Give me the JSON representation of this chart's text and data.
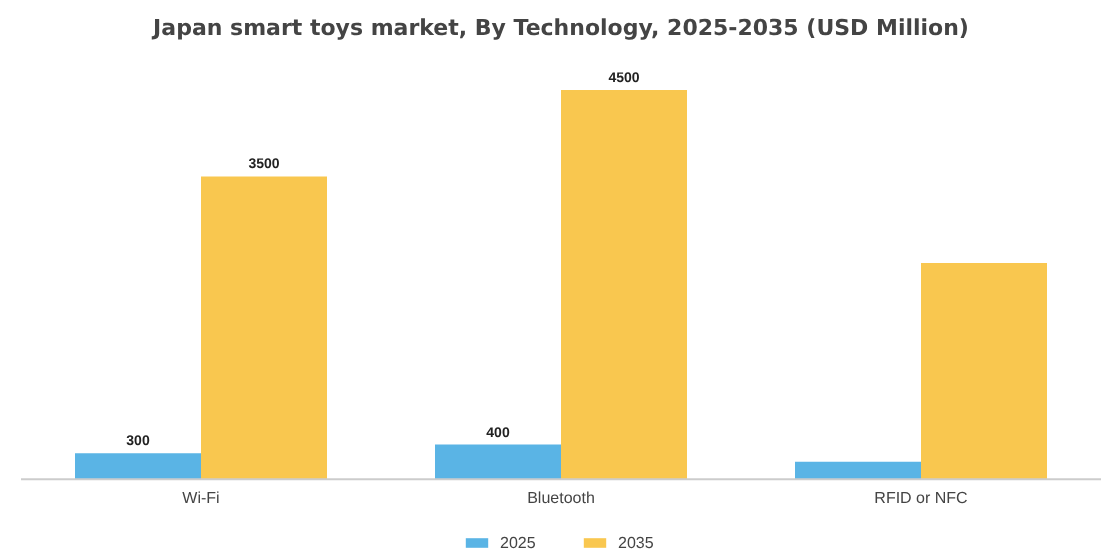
{
  "chart_data": {
    "type": "bar",
    "title": "Japan smart toys market, By Technology, 2025-2035 (USD Million)",
    "categories": [
      "Wi-Fi",
      "Bluetooth",
      "RFID or NFC"
    ],
    "series": [
      {
        "name": "2025",
        "color": "#5ab4e5",
        "values": [
          300,
          400,
          200
        ],
        "value_labels": [
          "300",
          "400",
          null
        ]
      },
      {
        "name": "2035",
        "color": "#f9c74f",
        "values": [
          3500,
          4500,
          2500
        ],
        "value_labels": [
          "3500",
          "4500",
          null
        ]
      }
    ],
    "legend": "bottom"
  }
}
